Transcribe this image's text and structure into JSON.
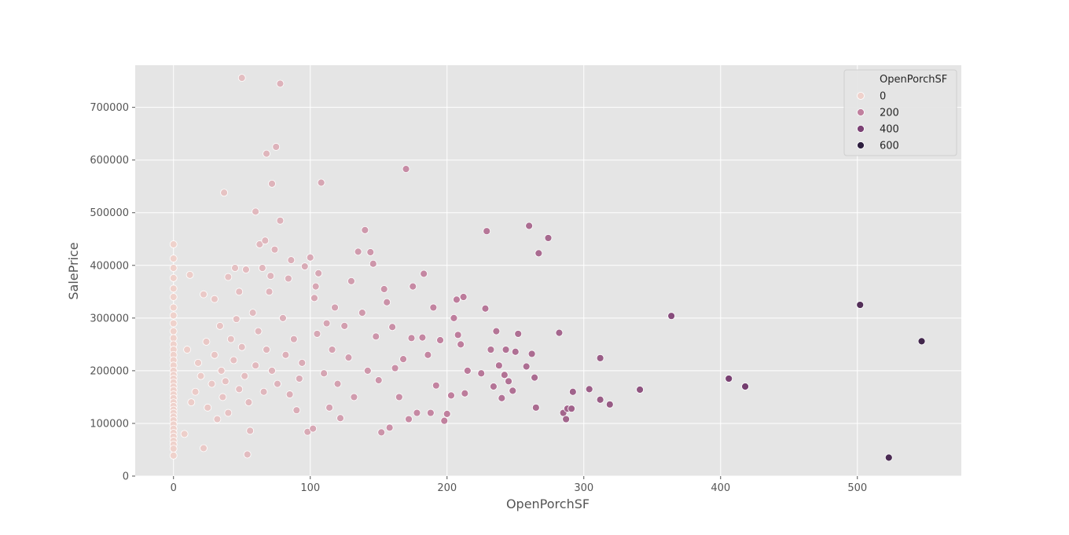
{
  "chart_data": {
    "type": "scatter",
    "title": "",
    "xlabel": "OpenPorchSF",
    "ylabel": "SalePrice",
    "xlim": [
      -28,
      576
    ],
    "ylim": [
      0,
      780000
    ],
    "xticks": [
      0,
      100,
      200,
      300,
      400,
      500
    ],
    "yticks": [
      0,
      100000,
      200000,
      300000,
      400000,
      500000,
      600000,
      700000
    ],
    "grid": true,
    "background": "#e5e5e5",
    "legend": {
      "title": "OpenPorchSF",
      "placement": "top-right",
      "entries": [
        {
          "label": "0",
          "value": 0,
          "color": "#efd2cc"
        },
        {
          "label": "200",
          "value": 200,
          "color": "#c0809e"
        },
        {
          "label": "400",
          "value": 400,
          "color": "#7b4174"
        },
        {
          "label": "600",
          "value": 600,
          "color": "#2d1e3e"
        }
      ]
    },
    "hue_range": [
      0,
      600
    ],
    "points": [
      [
        0,
        440000
      ],
      [
        0,
        413000
      ],
      [
        0,
        395000
      ],
      [
        0,
        376000
      ],
      [
        0,
        356000
      ],
      [
        0,
        340000
      ],
      [
        0,
        320000
      ],
      [
        0,
        305000
      ],
      [
        0,
        290000
      ],
      [
        0,
        275000
      ],
      [
        0,
        262000
      ],
      [
        0,
        250000
      ],
      [
        0,
        240000
      ],
      [
        0,
        230000
      ],
      [
        0,
        220000
      ],
      [
        0,
        210000
      ],
      [
        0,
        200000
      ],
      [
        0,
        192000
      ],
      [
        0,
        185000
      ],
      [
        0,
        178000
      ],
      [
        0,
        170000
      ],
      [
        0,
        163000
      ],
      [
        0,
        155000
      ],
      [
        0,
        148000
      ],
      [
        0,
        140000
      ],
      [
        0,
        133000
      ],
      [
        0,
        126000
      ],
      [
        0,
        120000
      ],
      [
        0,
        113000
      ],
      [
        0,
        106000
      ],
      [
        0,
        98000
      ],
      [
        0,
        90000
      ],
      [
        0,
        82000
      ],
      [
        0,
        75000
      ],
      [
        0,
        67000
      ],
      [
        0,
        60000
      ],
      [
        0,
        52000
      ],
      [
        0,
        39000
      ],
      [
        8,
        80000
      ],
      [
        10,
        240000
      ],
      [
        12,
        382000
      ],
      [
        13,
        140000
      ],
      [
        16,
        160000
      ],
      [
        18,
        215000
      ],
      [
        20,
        190000
      ],
      [
        22,
        53000
      ],
      [
        22,
        345000
      ],
      [
        24,
        255000
      ],
      [
        25,
        130000
      ],
      [
        28,
        175000
      ],
      [
        30,
        336000
      ],
      [
        30,
        230000
      ],
      [
        32,
        108000
      ],
      [
        34,
        285000
      ],
      [
        35,
        200000
      ],
      [
        36,
        150000
      ],
      [
        37,
        538000
      ],
      [
        38,
        180000
      ],
      [
        40,
        378000
      ],
      [
        40,
        120000
      ],
      [
        42,
        260000
      ],
      [
        44,
        220000
      ],
      [
        45,
        395000
      ],
      [
        46,
        298000
      ],
      [
        48,
        165000
      ],
      [
        48,
        350000
      ],
      [
        50,
        756000
      ],
      [
        50,
        245000
      ],
      [
        52,
        190000
      ],
      [
        53,
        392000
      ],
      [
        54,
        41000
      ],
      [
        55,
        140000
      ],
      [
        56,
        86000
      ],
      [
        58,
        310000
      ],
      [
        60,
        502000
      ],
      [
        60,
        210000
      ],
      [
        62,
        275000
      ],
      [
        63,
        440000
      ],
      [
        65,
        395000
      ],
      [
        66,
        160000
      ],
      [
        67,
        447000
      ],
      [
        68,
        612000
      ],
      [
        68,
        240000
      ],
      [
        70,
        350000
      ],
      [
        71,
        380000
      ],
      [
        72,
        555000
      ],
      [
        72,
        200000
      ],
      [
        74,
        430000
      ],
      [
        75,
        625000
      ],
      [
        76,
        175000
      ],
      [
        78,
        485000
      ],
      [
        78,
        745000
      ],
      [
        80,
        300000
      ],
      [
        82,
        230000
      ],
      [
        84,
        375000
      ],
      [
        85,
        155000
      ],
      [
        86,
        410000
      ],
      [
        88,
        260000
      ],
      [
        90,
        125000
      ],
      [
        92,
        185000
      ],
      [
        94,
        215000
      ],
      [
        96,
        398000
      ],
      [
        98,
        84000
      ],
      [
        100,
        415000
      ],
      [
        102,
        90000
      ],
      [
        103,
        338000
      ],
      [
        104,
        360000
      ],
      [
        105,
        270000
      ],
      [
        106,
        385000
      ],
      [
        108,
        557000
      ],
      [
        110,
        195000
      ],
      [
        112,
        290000
      ],
      [
        114,
        130000
      ],
      [
        116,
        240000
      ],
      [
        118,
        320000
      ],
      [
        120,
        175000
      ],
      [
        122,
        110000
      ],
      [
        125,
        285000
      ],
      [
        128,
        225000
      ],
      [
        130,
        370000
      ],
      [
        132,
        150000
      ],
      [
        135,
        426000
      ],
      [
        138,
        310000
      ],
      [
        140,
        467000
      ],
      [
        142,
        200000
      ],
      [
        144,
        425000
      ],
      [
        146,
        403000
      ],
      [
        148,
        265000
      ],
      [
        150,
        182000
      ],
      [
        152,
        83000
      ],
      [
        154,
        355000
      ],
      [
        156,
        330000
      ],
      [
        158,
        92000
      ],
      [
        160,
        283000
      ],
      [
        162,
        205000
      ],
      [
        165,
        150000
      ],
      [
        168,
        222000
      ],
      [
        170,
        583000
      ],
      [
        172,
        108000
      ],
      [
        174,
        262000
      ],
      [
        175,
        360000
      ],
      [
        178,
        120000
      ],
      [
        182,
        263000
      ],
      [
        183,
        384000
      ],
      [
        186,
        230000
      ],
      [
        188,
        120000
      ],
      [
        190,
        320000
      ],
      [
        192,
        172000
      ],
      [
        195,
        258000
      ],
      [
        198,
        105000
      ],
      [
        200,
        118000
      ],
      [
        203,
        153000
      ],
      [
        205,
        300000
      ],
      [
        207,
        335000
      ],
      [
        208,
        268000
      ],
      [
        210,
        250000
      ],
      [
        212,
        340000
      ],
      [
        213,
        157000
      ],
      [
        215,
        200000
      ],
      [
        225,
        195000
      ],
      [
        228,
        318000
      ],
      [
        229,
        465000
      ],
      [
        232,
        240000
      ],
      [
        234,
        170000
      ],
      [
        236,
        275000
      ],
      [
        238,
        210000
      ],
      [
        240,
        148000
      ],
      [
        242,
        192000
      ],
      [
        243,
        240000
      ],
      [
        245,
        180000
      ],
      [
        248,
        162000
      ],
      [
        250,
        236000
      ],
      [
        252,
        270000
      ],
      [
        258,
        208000
      ],
      [
        260,
        475000
      ],
      [
        262,
        232000
      ],
      [
        264,
        187000
      ],
      [
        265,
        130000
      ],
      [
        267,
        423000
      ],
      [
        274,
        452000
      ],
      [
        282,
        272000
      ],
      [
        285,
        120000
      ],
      [
        287,
        108000
      ],
      [
        288,
        128000
      ],
      [
        291,
        128000
      ],
      [
        292,
        160000
      ],
      [
        304,
        165000
      ],
      [
        312,
        145000
      ],
      [
        312,
        224000
      ],
      [
        319,
        136000
      ],
      [
        341,
        164000
      ],
      [
        364,
        304000
      ],
      [
        406,
        185000
      ],
      [
        418,
        170000
      ],
      [
        502,
        325000
      ],
      [
        523,
        35000
      ],
      [
        547,
        256000
      ]
    ]
  }
}
